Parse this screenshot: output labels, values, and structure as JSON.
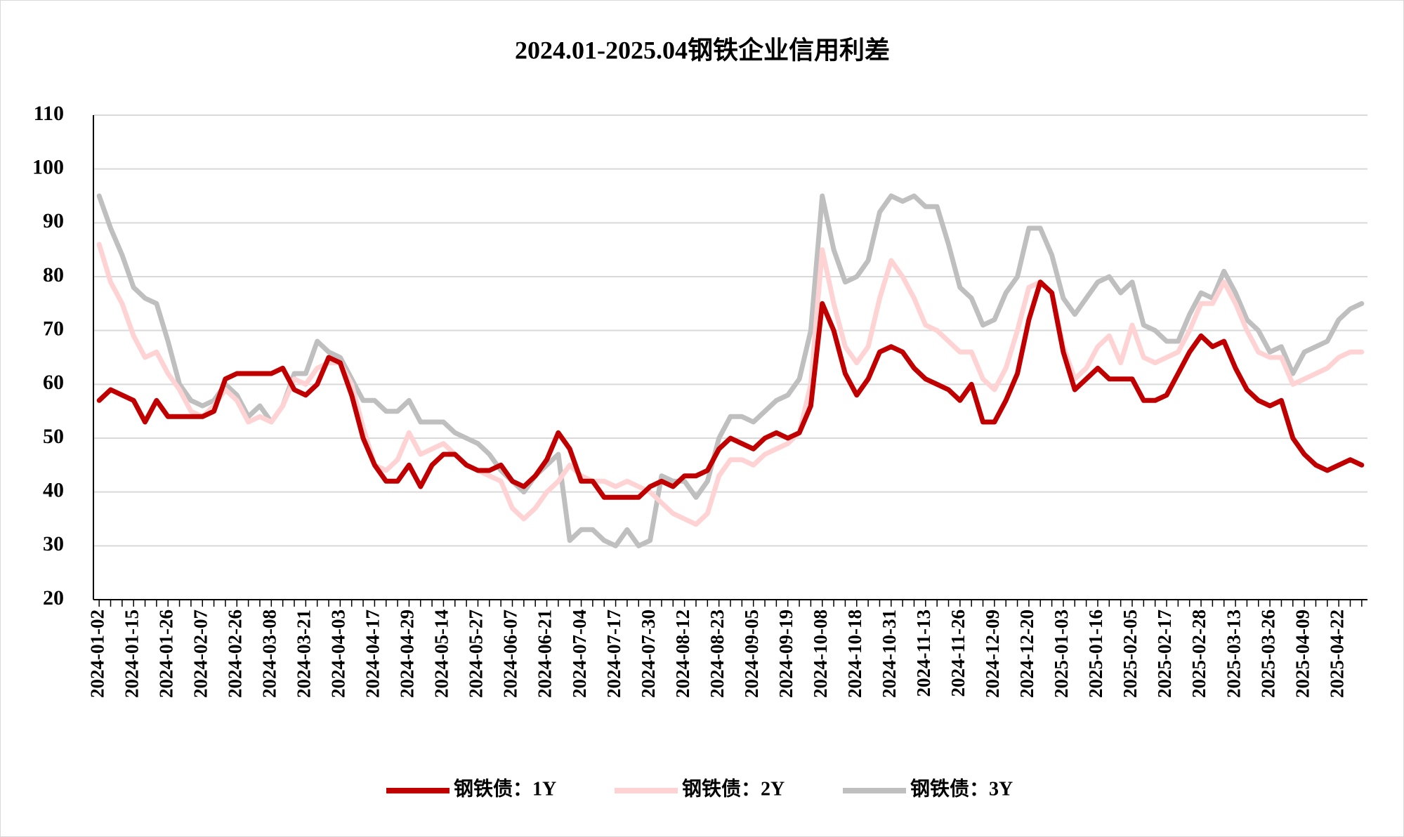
{
  "chart_data": {
    "type": "line",
    "title": "2024.01-2025.04钢铁企业信用利差",
    "categories": [
      "2024-01-02",
      null,
      null,
      "2024-01-15",
      null,
      null,
      "2024-01-26",
      null,
      null,
      "2024-02-07",
      null,
      null,
      "2024-02-26",
      null,
      null,
      "2024-03-08",
      null,
      null,
      "2024-03-21",
      null,
      null,
      "2024-04-03",
      null,
      null,
      "2024-04-17",
      null,
      null,
      "2024-04-29",
      null,
      null,
      "2024-05-14",
      null,
      null,
      "2024-05-27",
      null,
      null,
      "2024-06-07",
      null,
      null,
      "2024-06-21",
      null,
      null,
      "2024-07-04",
      null,
      null,
      "2024-07-17",
      null,
      null,
      "2024-07-30",
      null,
      null,
      "2024-08-12",
      null,
      null,
      "2024-08-23",
      null,
      null,
      "2024-09-05",
      null,
      null,
      "2024-09-19",
      null,
      null,
      "2024-10-08",
      null,
      null,
      "2024-10-18",
      null,
      null,
      "2024-10-31",
      null,
      null,
      "2024-11-13",
      null,
      null,
      "2024-11-26",
      null,
      null,
      "2024-12-09",
      null,
      null,
      "2024-12-20",
      null,
      null,
      "2025-01-03",
      null,
      null,
      "2025-01-16",
      null,
      null,
      "2025-02-05",
      null,
      null,
      "2025-02-17",
      null,
      null,
      "2025-02-28",
      null,
      null,
      "2025-03-13",
      null,
      null,
      "2025-03-26",
      null,
      null,
      "2025-04-09",
      null,
      null,
      "2025-04-22",
      null,
      null
    ],
    "series": [
      {
        "name": "钢铁债：3Y",
        "color": "#bfbfbf",
        "values": [
          95,
          89,
          84,
          78,
          76,
          75,
          68,
          60,
          57,
          56,
          57,
          60,
          58,
          54,
          56,
          53,
          56,
          62,
          62,
          68,
          66,
          65,
          61,
          57,
          57,
          55,
          55,
          57,
          53,
          53,
          53,
          51,
          50,
          49,
          47,
          44,
          42,
          40,
          43,
          45,
          47,
          31,
          33,
          33,
          31,
          30,
          33,
          30,
          31,
          43,
          42,
          42,
          39,
          42,
          50,
          54,
          54,
          53,
          55,
          57,
          58,
          61,
          70,
          95,
          85,
          79,
          80,
          83,
          92,
          95,
          94,
          95,
          93,
          93,
          86,
          78,
          76,
          71,
          72,
          77,
          80,
          89,
          89,
          84,
          76,
          73,
          76,
          79,
          80,
          77,
          79,
          71,
          70,
          68,
          68,
          73,
          77,
          76,
          81,
          77,
          72,
          70,
          66,
          67,
          62,
          66,
          67,
          68,
          72,
          74,
          75
        ]
      },
      {
        "name": "钢铁债：2Y",
        "color": "#ffd3d3",
        "values": [
          86,
          79,
          75,
          69,
          65,
          66,
          62,
          59,
          55,
          54,
          56,
          59,
          57,
          53,
          54,
          53,
          56,
          61,
          60,
          63,
          64,
          64,
          60,
          52,
          45,
          44,
          46,
          51,
          47,
          48,
          49,
          47,
          45,
          44,
          43,
          42,
          37,
          35,
          37,
          40,
          42,
          45,
          43,
          42,
          42,
          41,
          42,
          41,
          40,
          38,
          36,
          35,
          34,
          36,
          43,
          46,
          46,
          45,
          47,
          48,
          49,
          51,
          60,
          85,
          75,
          67,
          64,
          67,
          76,
          83,
          80,
          76,
          71,
          70,
          68,
          66,
          66,
          61,
          59,
          63,
          70,
          78,
          79,
          77,
          67,
          61,
          63,
          67,
          69,
          64,
          71,
          65,
          64,
          65,
          66,
          70,
          75,
          75,
          79,
          75,
          70,
          66,
          65,
          65,
          60,
          61,
          62,
          63,
          65,
          66,
          66
        ]
      },
      {
        "name": "钢铁债：1Y",
        "color": "#c00000",
        "values": [
          57,
          59,
          58,
          57,
          53,
          57,
          54,
          54,
          54,
          54,
          55,
          61,
          62,
          62,
          62,
          62,
          63,
          59,
          58,
          60,
          65,
          64,
          58,
          50,
          45,
          42,
          42,
          45,
          41,
          45,
          47,
          47,
          45,
          44,
          44,
          45,
          42,
          41,
          43,
          46,
          51,
          48,
          42,
          42,
          39,
          39,
          39,
          39,
          41,
          42,
          41,
          43,
          43,
          44,
          48,
          50,
          49,
          48,
          50,
          51,
          50,
          51,
          56,
          75,
          70,
          62,
          58,
          61,
          66,
          67,
          66,
          63,
          61,
          60,
          59,
          57,
          60,
          53,
          53,
          57,
          62,
          72,
          79,
          77,
          66,
          59,
          61,
          63,
          61,
          61,
          61,
          57,
          57,
          58,
          62,
          66,
          69,
          67,
          68,
          63,
          59,
          57,
          56,
          57,
          50,
          47,
          45,
          44,
          45,
          46,
          45
        ]
      }
    ],
    "ylim": [
      20,
      110
    ],
    "yticks": [
      20,
      30,
      40,
      50,
      60,
      70,
      80,
      90,
      100,
      110
    ],
    "grid": true
  }
}
